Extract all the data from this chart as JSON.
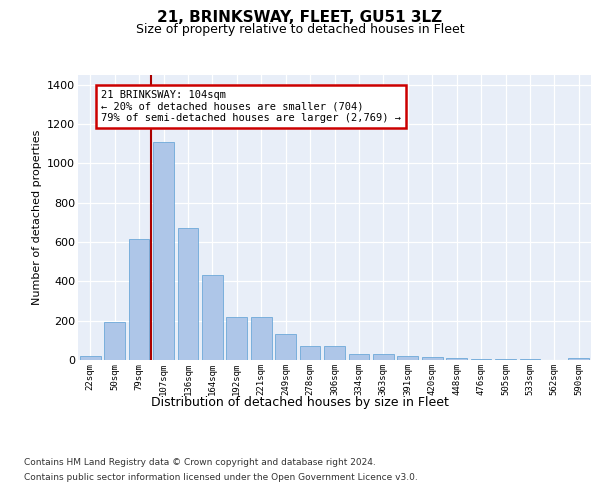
{
  "title": "21, BRINKSWAY, FLEET, GU51 3LZ",
  "subtitle": "Size of property relative to detached houses in Fleet",
  "xlabel": "Distribution of detached houses by size in Fleet",
  "ylabel": "Number of detached properties",
  "categories": [
    "22sqm",
    "50sqm",
    "79sqm",
    "107sqm",
    "136sqm",
    "164sqm",
    "192sqm",
    "221sqm",
    "249sqm",
    "278sqm",
    "306sqm",
    "334sqm",
    "363sqm",
    "391sqm",
    "420sqm",
    "448sqm",
    "476sqm",
    "505sqm",
    "533sqm",
    "562sqm",
    "590sqm"
  ],
  "values": [
    18,
    195,
    615,
    1110,
    670,
    430,
    218,
    218,
    130,
    72,
    72,
    32,
    30,
    22,
    17,
    12,
    7,
    7,
    3,
    1,
    12
  ],
  "bar_color": "#aec6e8",
  "bar_edge_color": "#5a9fd4",
  "background_color": "#e8eef8",
  "grid_color": "#ffffff",
  "fig_background_color": "#ffffff",
  "vline_x_index": 3,
  "vline_color": "#aa0000",
  "annotation_text": "21 BRINKSWAY: 104sqm\n← 20% of detached houses are smaller (704)\n79% of semi-detached houses are larger (2,769) →",
  "annotation_box_facecolor": "#ffffff",
  "annotation_box_edgecolor": "#cc0000",
  "ylim": [
    0,
    1450
  ],
  "yticks": [
    0,
    200,
    400,
    600,
    800,
    1000,
    1200,
    1400
  ],
  "footer_line1": "Contains HM Land Registry data © Crown copyright and database right 2024.",
  "footer_line2": "Contains public sector information licensed under the Open Government Licence v3.0."
}
